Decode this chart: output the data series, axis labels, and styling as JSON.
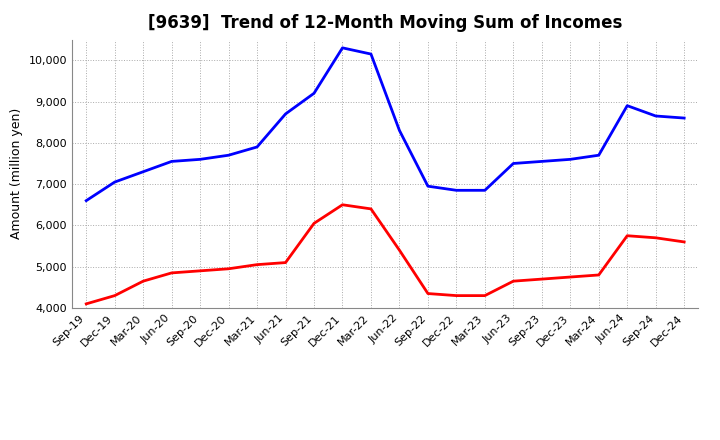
{
  "title": "[9639]  Trend of 12-Month Moving Sum of Incomes",
  "ylabel": "Amount (million yen)",
  "x_labels": [
    "Sep-19",
    "Dec-19",
    "Mar-20",
    "Jun-20",
    "Sep-20",
    "Dec-20",
    "Mar-21",
    "Jun-21",
    "Sep-21",
    "Dec-21",
    "Mar-22",
    "Jun-22",
    "Sep-22",
    "Dec-22",
    "Mar-23",
    "Jun-23",
    "Sep-23",
    "Dec-23",
    "Mar-24",
    "Jun-24",
    "Sep-24",
    "Dec-24"
  ],
  "ordinary_income": [
    6600,
    7050,
    7300,
    7550,
    7600,
    7700,
    7900,
    8700,
    9200,
    10300,
    10150,
    8300,
    6950,
    6850,
    6850,
    7500,
    7550,
    7600,
    7700,
    8900,
    8650,
    8600
  ],
  "net_income": [
    4100,
    4300,
    4650,
    4850,
    4900,
    4950,
    5050,
    5100,
    6050,
    6500,
    6400,
    5400,
    4350,
    4300,
    4300,
    4650,
    4700,
    4750,
    4800,
    5750,
    5700,
    5600
  ],
  "ordinary_color": "#0000ff",
  "net_color": "#ff0000",
  "ylim": [
    4000,
    10500
  ],
  "yticks": [
    4000,
    5000,
    6000,
    7000,
    8000,
    9000,
    10000
  ],
  "background_color": "#ffffff",
  "grid_color": "#aaaaaa",
  "line_width": 2.0,
  "title_fontsize": 12,
  "tick_fontsize": 8,
  "ylabel_fontsize": 9
}
